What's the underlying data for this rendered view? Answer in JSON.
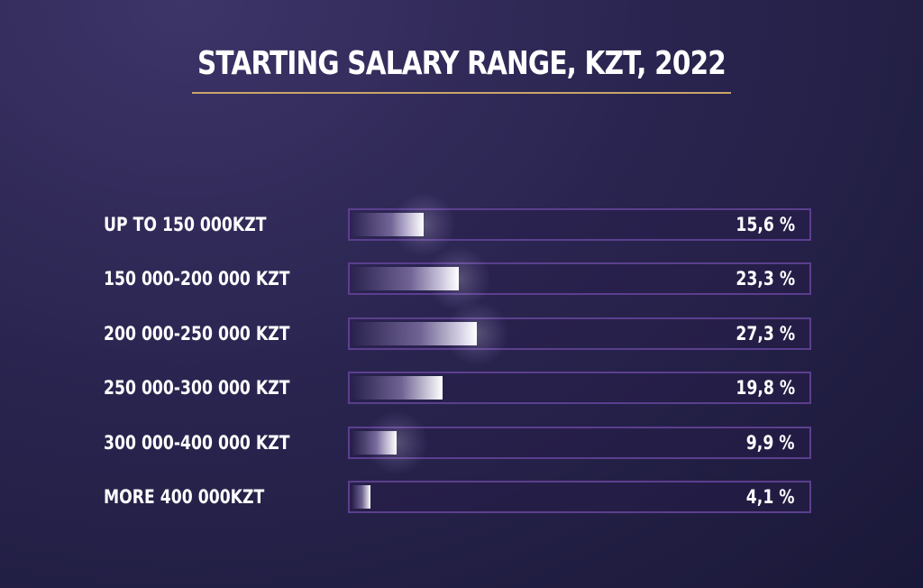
{
  "chart_data": {
    "type": "bar",
    "title": "STARTING SALARY RANGE, KZT, 2022",
    "categories": [
      "UP TO 150 000KZT",
      "150 000-200 000 KZT",
      "200 000-250 000 KZT",
      "250 000-300 000 KZT",
      "300 000-400 000 KZT",
      "MORE 400 000KZT"
    ],
    "values": [
      15.6,
      23.3,
      27.3,
      19.8,
      9.9,
      4.1
    ],
    "value_labels": [
      "15,6 %",
      "23,3 %",
      "27,3 %",
      "19,8 %",
      "9,9 %",
      "4,1 %"
    ],
    "unit": "%",
    "orientation": "horizontal",
    "xlim": [
      0,
      100
    ],
    "grid": false,
    "glow": [
      true,
      true,
      true,
      false,
      true,
      false
    ],
    "colors": {
      "background": "#2a2550",
      "track_border": "#5b3f8e",
      "bar_highlight": "#ffffff",
      "title_rule": "#c9a56a",
      "text": "#ffffff"
    }
  }
}
